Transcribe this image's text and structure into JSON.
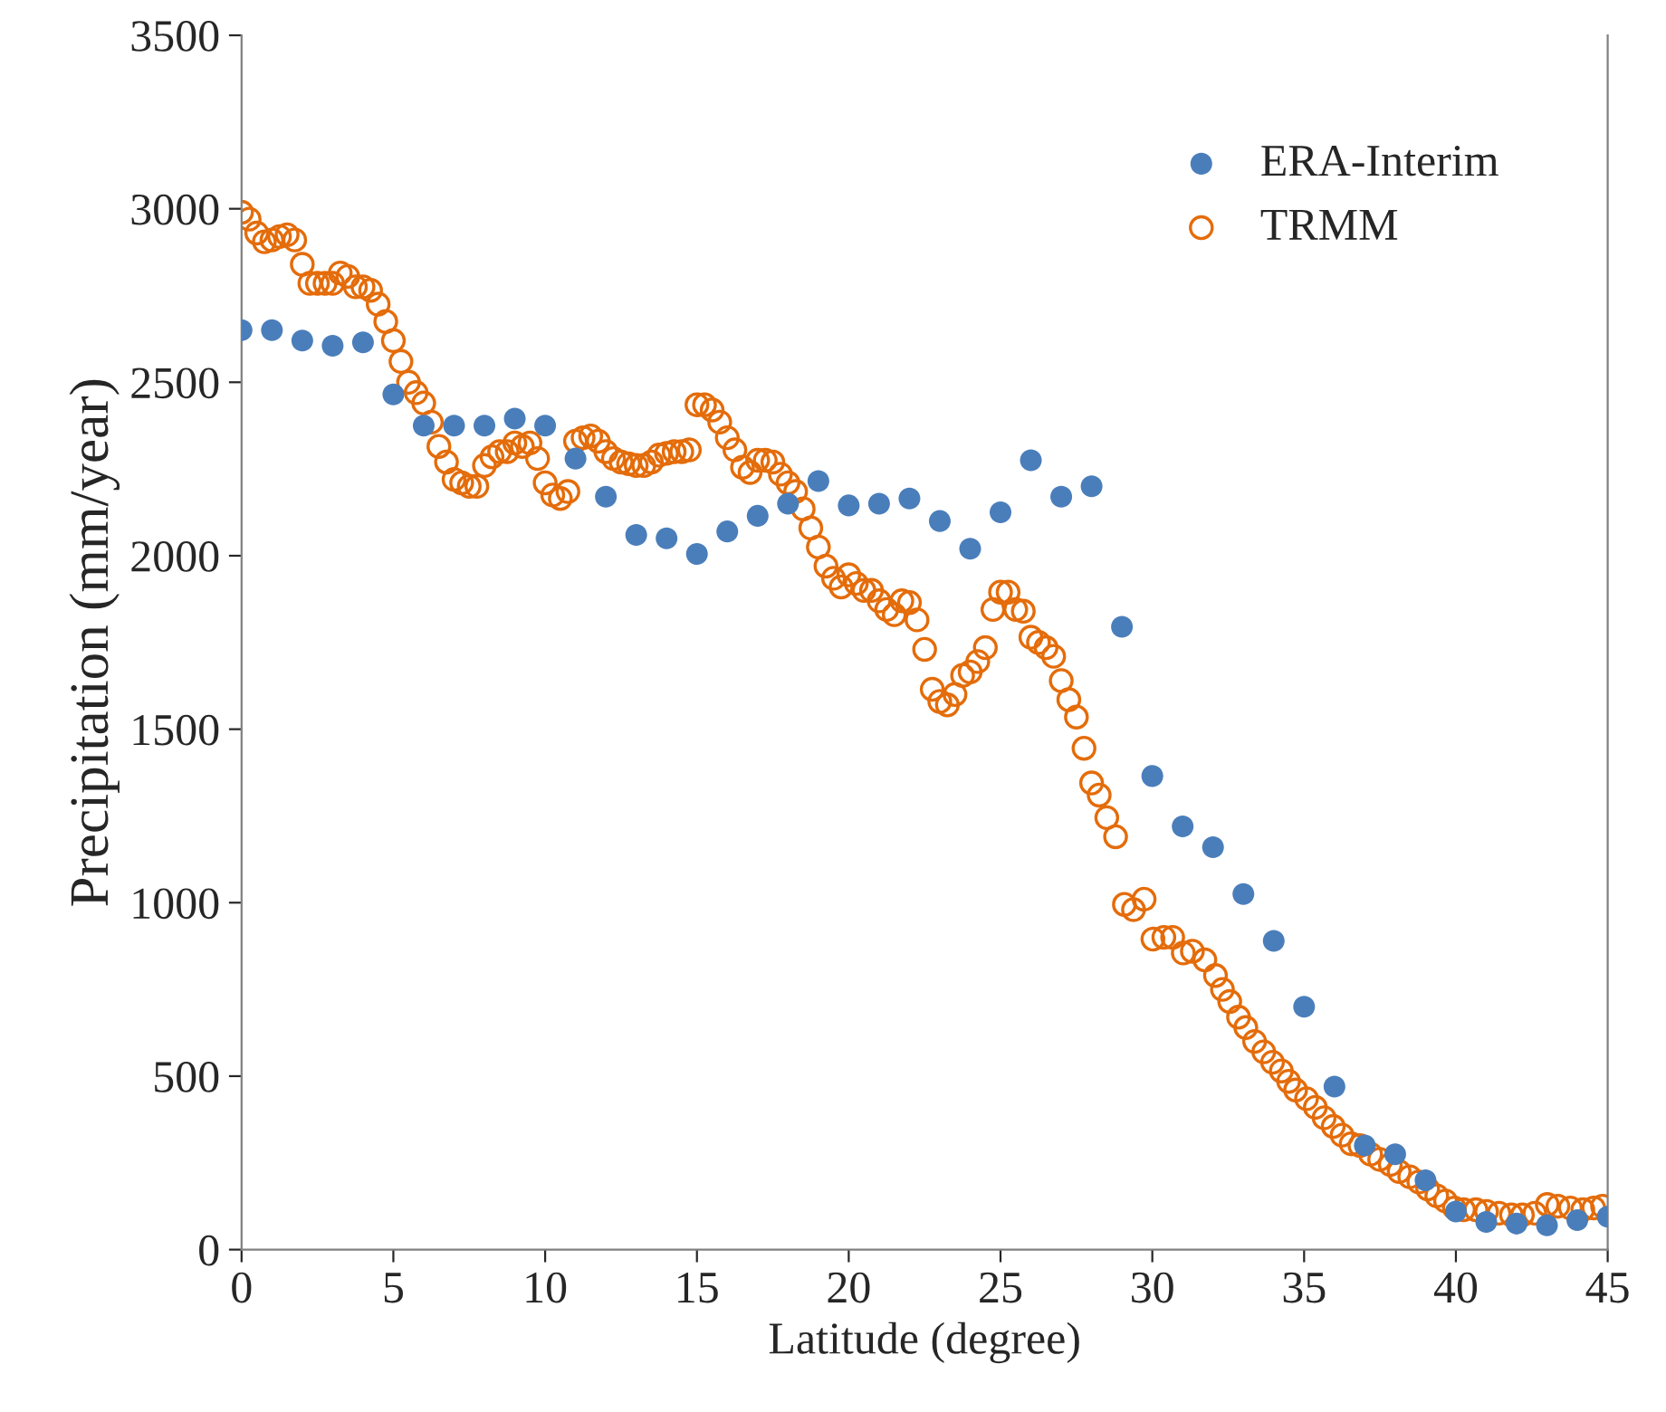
{
  "chart_data": {
    "type": "scatter",
    "xlabel": "Latitude (degree)",
    "ylabel": "Precipitation (mm/year)",
    "xlim": [
      0,
      45
    ],
    "xticks": [
      0,
      5,
      10,
      15,
      20,
      25,
      30,
      35,
      40,
      45
    ],
    "ylim": [
      0,
      3500
    ],
    "yticks": [
      0,
      500,
      1000,
      1500,
      2000,
      2500,
      3000,
      3500
    ],
    "grid": false,
    "legend": "top right",
    "marker": "circle",
    "series": [
      {
        "name": "ERA-Interim",
        "color": "#4a7ebb",
        "x": [
          0,
          1,
          2,
          3,
          4,
          5,
          6,
          7,
          8,
          9,
          10,
          11,
          12,
          13,
          14,
          15,
          16,
          17,
          18,
          19,
          20,
          21,
          22,
          23,
          24,
          25,
          26,
          27,
          28,
          29,
          30,
          31,
          32,
          33,
          34,
          35,
          36,
          37,
          38,
          39,
          40,
          41,
          42,
          43,
          44,
          45
        ],
        "values": [
          2650,
          2650,
          2620,
          2605,
          2615,
          2465,
          2375,
          2375,
          2375,
          2395,
          2375,
          2280,
          2170,
          2060,
          2050,
          2005,
          2070,
          2115,
          2150,
          2215,
          2145,
          2150,
          2165,
          2100,
          2020,
          2125,
          2275,
          2170,
          2200,
          1795,
          1365,
          1220,
          1160,
          1025,
          890,
          700,
          470,
          300,
          275,
          200,
          110,
          80,
          75,
          70,
          85,
          95
        ]
      },
      {
        "name": "TRMM",
        "color": "#e46c0a",
        "x": [
          0,
          0.25,
          0.5,
          0.75,
          1,
          1.25,
          1.5,
          1.75,
          2,
          2.25,
          2.5,
          2.75,
          3,
          3.25,
          3.5,
          3.75,
          4,
          4.25,
          4.5,
          4.75,
          5,
          5.25,
          5.5,
          5.75,
          6,
          6.25,
          6.5,
          6.75,
          7,
          7.25,
          7.5,
          7.75,
          8,
          8.25,
          8.5,
          8.75,
          9,
          9.25,
          9.5,
          9.75,
          10,
          10.25,
          10.5,
          10.75,
          11,
          11.25,
          11.5,
          11.75,
          12,
          12.25,
          12.5,
          12.75,
          13,
          13.25,
          13.5,
          13.75,
          14,
          14.25,
          14.5,
          14.75,
          15,
          15.25,
          15.5,
          15.75,
          16,
          16.25,
          16.5,
          16.75,
          17,
          17.25,
          17.5,
          17.75,
          18,
          18.25,
          18.5,
          18.75,
          19,
          19.25,
          19.5,
          19.75,
          20,
          20.25,
          20.5,
          20.75,
          21,
          21.25,
          21.5,
          21.75,
          22,
          22.25,
          22.5,
          22.75,
          23,
          23.25,
          23.5,
          23.75,
          24,
          24.25,
          24.5,
          24.75,
          25,
          25.25,
          25.5,
          25.75,
          26,
          26.25,
          26.5,
          26.75,
          27,
          27.25,
          27.5,
          27.75,
          28,
          28.25,
          28.5,
          28.79,
          29.08,
          29.38,
          29.73,
          30.02,
          30.38,
          30.67,
          31.02,
          31.32,
          31.73,
          32.08,
          32.31,
          32.55,
          32.84,
          33.08,
          33.37,
          33.67,
          33.96,
          34.25,
          34.49,
          34.72,
          35.08,
          35.37,
          35.66,
          35.96,
          36.25,
          36.55,
          36.84,
          37.19,
          37.49,
          37.84,
          38.13,
          38.48,
          38.78,
          39.07,
          39.37,
          39.66,
          39.95,
          40.25,
          40.66,
          41.01,
          41.42,
          41.83,
          42.19,
          42.6,
          43.01,
          43.36,
          43.77,
          44.18,
          44.54,
          44.83
        ],
        "values": [
          2990,
          2970,
          2930,
          2905,
          2910,
          2920,
          2925,
          2910,
          2840,
          2785,
          2785,
          2785,
          2785,
          2815,
          2805,
          2775,
          2775,
          2765,
          2725,
          2675,
          2620,
          2560,
          2500,
          2470,
          2440,
          2385,
          2315,
          2270,
          2220,
          2210,
          2200,
          2200,
          2260,
          2285,
          2300,
          2300,
          2325,
          2315,
          2325,
          2280,
          2210,
          2175,
          2165,
          2185,
          2330,
          2340,
          2345,
          2330,
          2300,
          2280,
          2270,
          2265,
          2260,
          2260,
          2270,
          2290,
          2295,
          2300,
          2300,
          2305,
          2435,
          2435,
          2420,
          2385,
          2340,
          2305,
          2255,
          2240,
          2275,
          2275,
          2270,
          2235,
          2210,
          2185,
          2135,
          2080,
          2025,
          1970,
          1935,
          1910,
          1945,
          1920,
          1900,
          1900,
          1870,
          1845,
          1830,
          1870,
          1865,
          1815,
          1730,
          1615,
          1580,
          1570,
          1600,
          1655,
          1665,
          1695,
          1735,
          1845,
          1895,
          1895,
          1845,
          1840,
          1765,
          1750,
          1735,
          1710,
          1640,
          1585,
          1535,
          1445,
          1345,
          1310,
          1245,
          1190,
          995,
          980,
          1010,
          895,
          900,
          900,
          855,
          860,
          835,
          790,
          750,
          715,
          670,
          640,
          600,
          570,
          540,
          515,
          485,
          460,
          435,
          410,
          380,
          355,
          330,
          305,
          300,
          275,
          260,
          245,
          225,
          210,
          195,
          175,
          155,
          140,
          120,
          115,
          115,
          110,
          105,
          100,
          100,
          105,
          130,
          125,
          120,
          115,
          120,
          125
        ]
      }
    ]
  }
}
